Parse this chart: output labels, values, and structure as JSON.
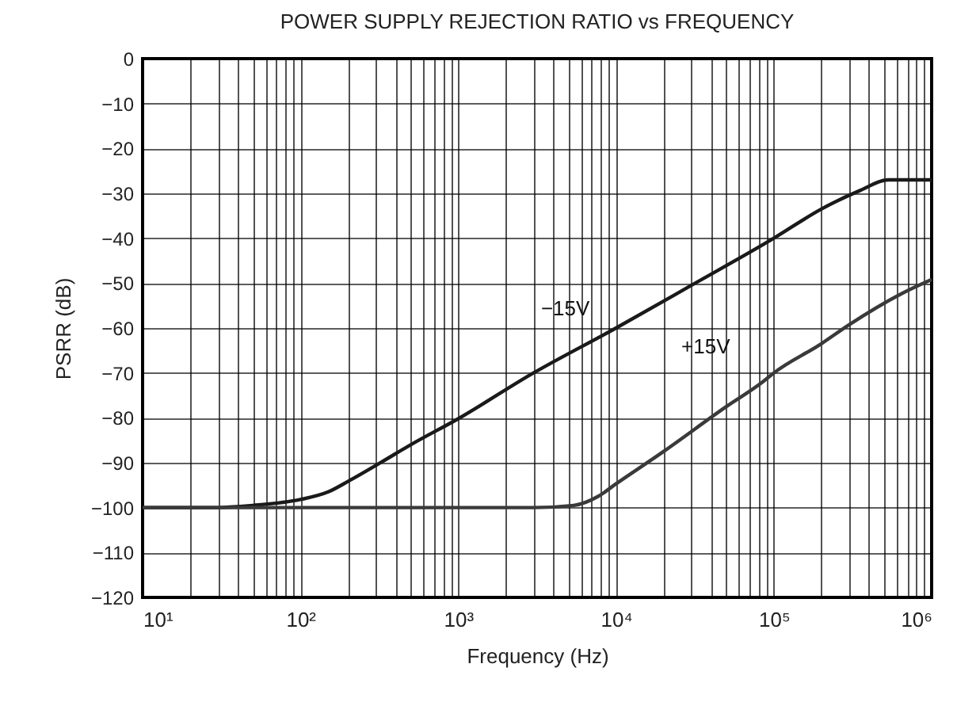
{
  "chart_data": {
    "type": "line",
    "title": "POWER SUPPLY REJECTION RATIO vs FREQUENCY",
    "xlabel": "Frequency (Hz)",
    "ylabel": "PSRR (dB)",
    "log": "x",
    "grid": true,
    "legend": false,
    "marker": "none",
    "line_style": "solid",
    "xlim": [
      10,
      1000000
    ],
    "ylim": [
      -120,
      0
    ],
    "xticks": [
      {
        "value": 10,
        "label": "10¹"
      },
      {
        "value": 20,
        "label": null
      },
      {
        "value": 30,
        "label": null
      },
      {
        "value": 40,
        "label": null
      },
      {
        "value": 50,
        "label": null
      },
      {
        "value": 60,
        "label": null
      },
      {
        "value": 70,
        "label": null
      },
      {
        "value": 80,
        "label": null
      },
      {
        "value": 90,
        "label": null
      },
      {
        "value": 100,
        "label": "10²"
      },
      {
        "value": 200,
        "label": null
      },
      {
        "value": 300,
        "label": null
      },
      {
        "value": 400,
        "label": null
      },
      {
        "value": 500,
        "label": null
      },
      {
        "value": 600,
        "label": null
      },
      {
        "value": 700,
        "label": null
      },
      {
        "value": 800,
        "label": null
      },
      {
        "value": 900,
        "label": null
      },
      {
        "value": 1000,
        "label": "10³"
      },
      {
        "value": 2000,
        "label": null
      },
      {
        "value": 3000,
        "label": null
      },
      {
        "value": 4000,
        "label": null
      },
      {
        "value": 5000,
        "label": null
      },
      {
        "value": 6000,
        "label": null
      },
      {
        "value": 7000,
        "label": null
      },
      {
        "value": 8000,
        "label": null
      },
      {
        "value": 9000,
        "label": null
      },
      {
        "value": 10000,
        "label": "10⁴"
      },
      {
        "value": 20000,
        "label": null
      },
      {
        "value": 30000,
        "label": null
      },
      {
        "value": 40000,
        "label": null
      },
      {
        "value": 50000,
        "label": null
      },
      {
        "value": 60000,
        "label": null
      },
      {
        "value": 70000,
        "label": null
      },
      {
        "value": 80000,
        "label": null
      },
      {
        "value": 90000,
        "label": null
      },
      {
        "value": 100000,
        "label": "10⁵"
      },
      {
        "value": 200000,
        "label": null
      },
      {
        "value": 300000,
        "label": null
      },
      {
        "value": 400000,
        "label": null
      },
      {
        "value": 500000,
        "label": null
      },
      {
        "value": 600000,
        "label": null
      },
      {
        "value": 700000,
        "label": null
      },
      {
        "value": 800000,
        "label": null
      },
      {
        "value": 900000,
        "label": null
      },
      {
        "value": 1000000,
        "label": "10⁶"
      }
    ],
    "yticks": [
      0,
      {
        "value": -10,
        "label": "−10"
      },
      {
        "value": -20,
        "label": "−20"
      },
      {
        "value": -30,
        "label": "−30"
      },
      {
        "value": -40,
        "label": "−40"
      },
      {
        "value": -50,
        "label": "−50"
      },
      {
        "value": -60,
        "label": "−60"
      },
      {
        "value": -70,
        "label": "−70"
      },
      {
        "value": -80,
        "label": "−80"
      },
      {
        "value": -90,
        "label": "−90"
      },
      {
        "value": -100,
        "label": "−100"
      },
      {
        "value": -110,
        "label": "−110"
      },
      {
        "value": -120,
        "label": "−120"
      }
    ],
    "series": [
      {
        "color": "#1a1a1a",
        "x": [
          10,
          27,
          50,
          100,
          150,
          204,
          325,
          500,
          1000,
          3000,
          10000,
          30000,
          100000,
          200000,
          350000,
          530000,
          1000000
        ],
        "values": [
          -100,
          -100,
          -99.5,
          -98.2,
          -96.5,
          -94,
          -89.9,
          -86,
          -80.2,
          -70,
          -60,
          -50.5,
          -40,
          -33.5,
          -29.4,
          -27,
          -27
        ]
      },
      {
        "color": "#3a3a3a",
        "x": [
          10,
          1000,
          3000,
          5400,
          7700,
          10000,
          20000,
          50000,
          85000,
          100000,
          200000,
          296000,
          640000,
          1000000
        ],
        "values": [
          -100,
          -100,
          -100,
          -99.5,
          -97.5,
          -94.7,
          -87.5,
          -77.5,
          -72,
          -70,
          -63.5,
          -59.4,
          -52.4,
          -49.2
        ]
      }
    ],
    "annotations": [
      {
        "text": "−15V",
        "x": 10000,
        "y": -60
      },
      {
        "text": "+15V",
        "x": 85000,
        "y": -72
      }
    ]
  }
}
